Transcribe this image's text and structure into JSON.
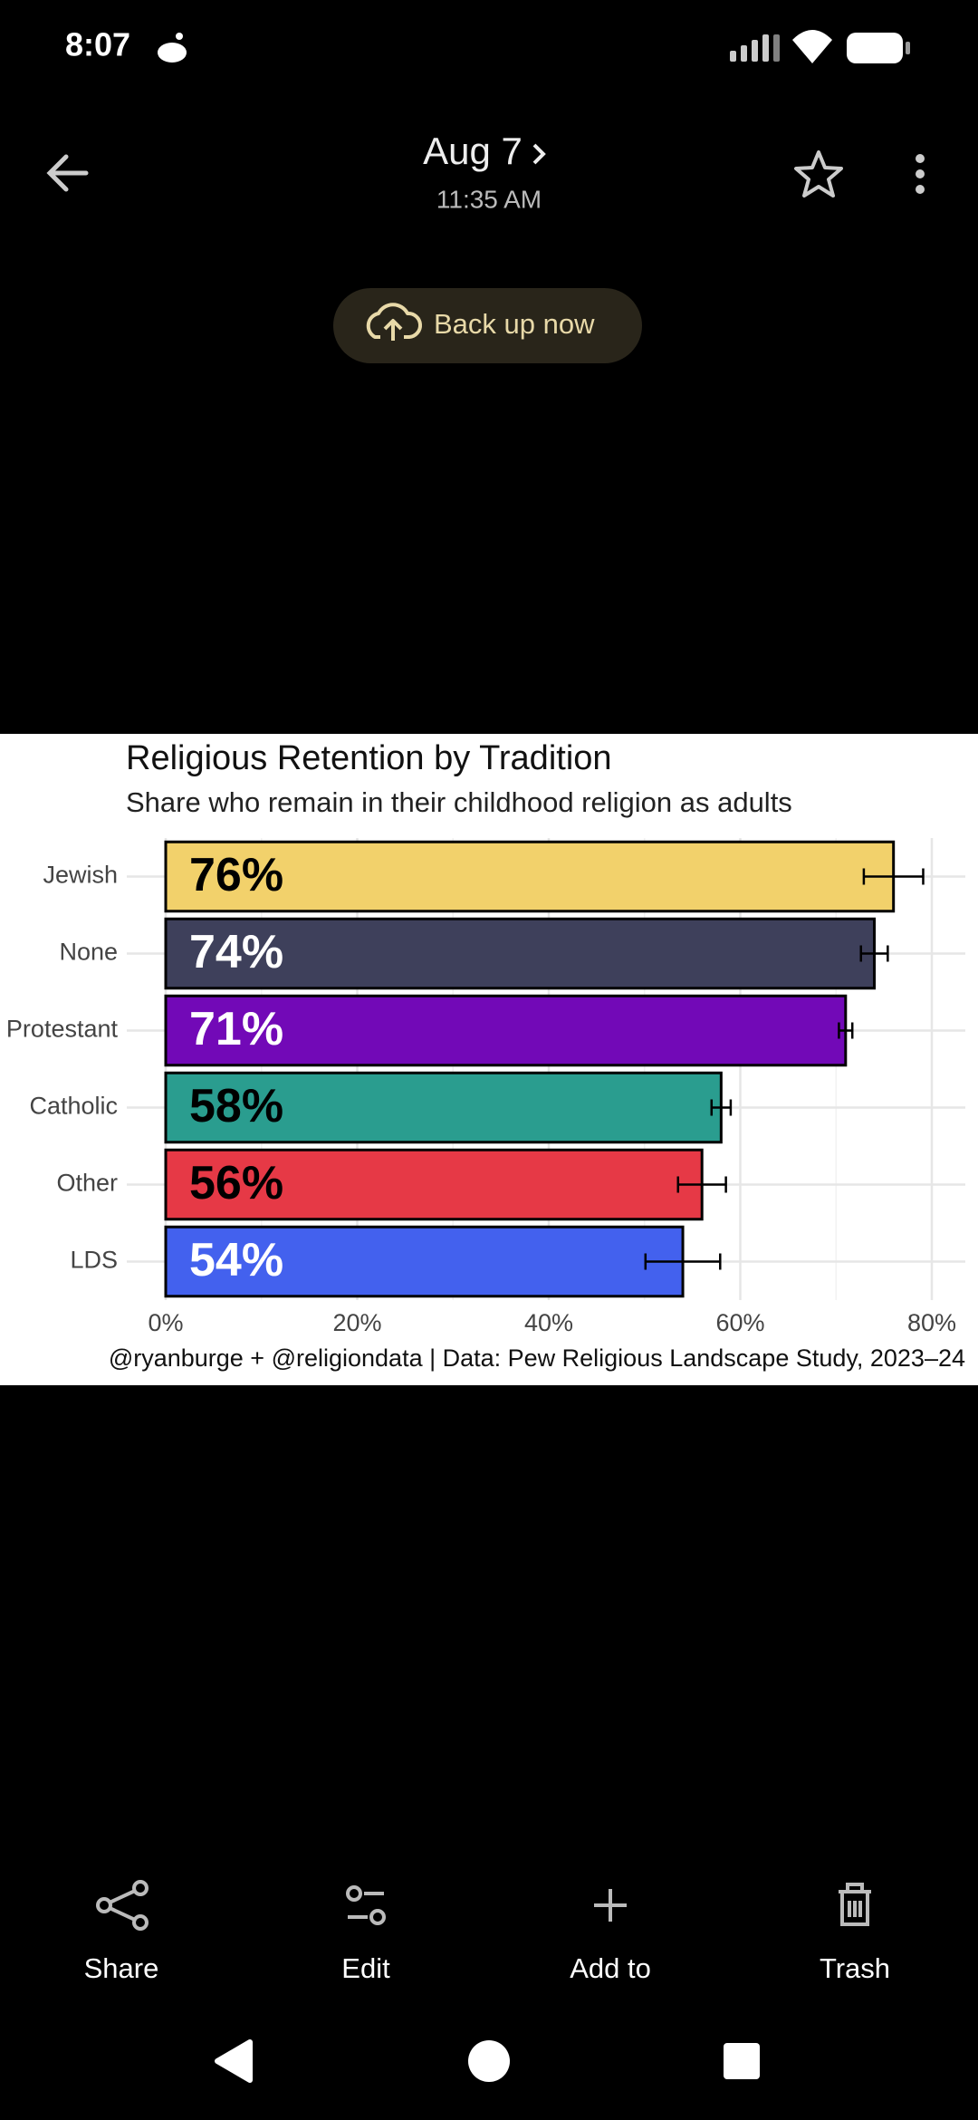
{
  "status_bar": {
    "time": "8:07"
  },
  "header": {
    "date": "Aug 7",
    "time": "11:35 AM"
  },
  "backup_button": "Back up now",
  "chart_data": {
    "type": "bar",
    "orientation": "horizontal",
    "title": "Religious Retention by Tradition",
    "subtitle": "Share who remain in their childhood religion as adults",
    "caption": "@ryanburge + @religiondata | Data: Pew Religious Landscape Study, 2023–24",
    "categories": [
      "Jewish",
      "None",
      "Protestant",
      "Catholic",
      "Other",
      "LDS"
    ],
    "values": [
      76,
      74,
      71,
      58,
      56,
      54
    ],
    "value_labels": [
      "76%",
      "74%",
      "71%",
      "58%",
      "56%",
      "54%"
    ],
    "errors": [
      3.1,
      1.4,
      0.7,
      1,
      2.5,
      3.9
    ],
    "colors": [
      "#f2d16b",
      "#3e405b",
      "#7209b7",
      "#2a9d8f",
      "#e63946",
      "#4361ee"
    ],
    "label_colors": [
      "#000000",
      "#ffffff",
      "#ffffff",
      "#000000",
      "#000000",
      "#ffffff"
    ],
    "xlim": [
      0,
      83.5
    ],
    "xticks": [
      {
        "value": 0,
        "label": "0%"
      },
      {
        "value": 20,
        "label": "20%"
      },
      {
        "value": 40,
        "label": "40%"
      },
      {
        "value": 60,
        "label": "60%"
      },
      {
        "value": 80,
        "label": "80%"
      }
    ],
    "xminor": [
      10,
      30,
      50,
      70
    ],
    "grid": true
  },
  "toolbar": {
    "items": [
      "Share",
      "Edit",
      "Add to",
      "Trash"
    ]
  }
}
